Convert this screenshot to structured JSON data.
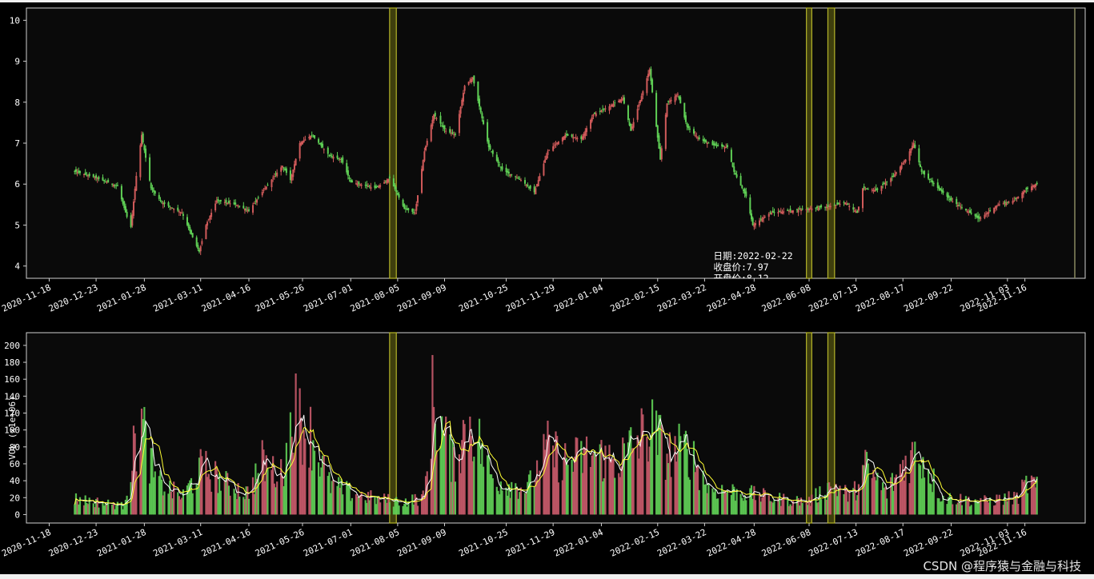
{
  "chart_data": [
    {
      "type": "candlestick",
      "ylim": [
        3.7,
        10.3
      ],
      "yticks": [
        "4",
        "5",
        "6",
        "7",
        "8",
        "9",
        "10"
      ],
      "x_tick_labels": [
        "2020-11-18",
        "2020-12-23",
        "2021-01-28",
        "2021-03-11",
        "2021-04-16",
        "2021-05-26",
        "2021-07-01",
        "2021-08-05",
        "2021-09-09",
        "2021-10-25",
        "2021-11-29",
        "2022-01-04",
        "2022-02-15",
        "2022-03-22",
        "2022-04-28",
        "2022-06-08",
        "2022-07-13",
        "2022-08-17",
        "2022-09-22",
        "2022-11-03",
        "2022-11-16"
      ],
      "close_anchors": [
        {
          "date": "2020-12-08",
          "close": 6.3
        },
        {
          "date": "2020-12-23",
          "close": 6.15
        },
        {
          "date": "2021-01-08",
          "close": 5.95
        },
        {
          "date": "2021-01-15",
          "close": 5.2
        },
        {
          "date": "2021-01-18",
          "close": 4.95
        },
        {
          "date": "2021-01-22",
          "close": 6.2
        },
        {
          "date": "2021-01-26",
          "close": 7.2
        },
        {
          "date": "2021-02-02",
          "close": 5.9
        },
        {
          "date": "2021-02-10",
          "close": 5.55
        },
        {
          "date": "2021-02-25",
          "close": 5.3
        },
        {
          "date": "2021-03-05",
          "close": 4.7
        },
        {
          "date": "2021-03-10",
          "close": 4.35
        },
        {
          "date": "2021-03-15",
          "close": 5.0
        },
        {
          "date": "2021-03-23",
          "close": 5.6
        },
        {
          "date": "2021-04-06",
          "close": 5.5
        },
        {
          "date": "2021-04-16",
          "close": 5.35
        },
        {
          "date": "2021-04-28",
          "close": 5.9
        },
        {
          "date": "2021-05-11",
          "close": 6.45
        },
        {
          "date": "2021-05-17",
          "close": 6.1
        },
        {
          "date": "2021-05-24",
          "close": 7.0
        },
        {
          "date": "2021-06-02",
          "close": 7.2
        },
        {
          "date": "2021-06-15",
          "close": 6.7
        },
        {
          "date": "2021-06-24",
          "close": 6.6
        },
        {
          "date": "2021-07-01",
          "close": 6.05
        },
        {
          "date": "2021-07-20",
          "close": 5.9
        },
        {
          "date": "2021-07-30",
          "close": 6.15
        },
        {
          "date": "2021-08-10",
          "close": 5.4
        },
        {
          "date": "2021-08-18",
          "close": 5.3
        },
        {
          "date": "2021-08-25",
          "close": 6.8
        },
        {
          "date": "2021-09-01",
          "close": 7.7
        },
        {
          "date": "2021-09-10",
          "close": 7.3
        },
        {
          "date": "2021-09-17",
          "close": 7.2
        },
        {
          "date": "2021-09-24",
          "close": 8.4
        },
        {
          "date": "2021-09-30",
          "close": 8.6
        },
        {
          "date": "2021-10-12",
          "close": 6.9
        },
        {
          "date": "2021-10-22",
          "close": 6.35
        },
        {
          "date": "2021-11-05",
          "close": 6.1
        },
        {
          "date": "2021-11-15",
          "close": 5.8
        },
        {
          "date": "2021-11-25",
          "close": 6.8
        },
        {
          "date": "2021-12-08",
          "close": 7.2
        },
        {
          "date": "2021-12-20",
          "close": 7.1
        },
        {
          "date": "2021-12-29",
          "close": 7.7
        },
        {
          "date": "2022-01-10",
          "close": 7.9
        },
        {
          "date": "2022-01-20",
          "close": 8.1
        },
        {
          "date": "2022-01-26",
          "close": 7.3
        },
        {
          "date": "2022-02-09",
          "close": 8.8
        },
        {
          "date": "2022-02-14",
          "close": 7.4
        },
        {
          "date": "2022-02-17",
          "close": 6.6
        },
        {
          "date": "2022-02-22",
          "close": 7.97
        },
        {
          "date": "2022-03-02",
          "close": 8.2
        },
        {
          "date": "2022-03-09",
          "close": 7.4
        },
        {
          "date": "2022-03-18",
          "close": 7.1
        },
        {
          "date": "2022-03-28",
          "close": 6.95
        },
        {
          "date": "2022-04-08",
          "close": 6.9
        },
        {
          "date": "2022-04-13",
          "close": 6.3
        },
        {
          "date": "2022-04-22",
          "close": 5.7
        },
        {
          "date": "2022-04-27",
          "close": 5.0
        },
        {
          "date": "2022-05-10",
          "close": 5.3
        },
        {
          "date": "2022-05-25",
          "close": 5.35
        },
        {
          "date": "2022-06-08",
          "close": 5.4
        },
        {
          "date": "2022-06-22",
          "close": 5.45
        },
        {
          "date": "2022-07-05",
          "close": 5.55
        },
        {
          "date": "2022-07-14",
          "close": 5.3
        },
        {
          "date": "2022-07-18",
          "close": 5.9
        },
        {
          "date": "2022-07-28",
          "close": 5.85
        },
        {
          "date": "2022-08-10",
          "close": 6.2
        },
        {
          "date": "2022-08-19",
          "close": 6.6
        },
        {
          "date": "2022-08-25",
          "close": 7.0
        },
        {
          "date": "2022-08-31",
          "close": 6.3
        },
        {
          "date": "2022-09-09",
          "close": 6.0
        },
        {
          "date": "2022-09-22",
          "close": 5.6
        },
        {
          "date": "2022-10-13",
          "close": 5.15
        },
        {
          "date": "2022-10-27",
          "close": 5.5
        },
        {
          "date": "2022-11-08",
          "close": 5.6
        },
        {
          "date": "2022-11-16",
          "close": 5.85
        },
        {
          "date": "2022-11-24",
          "close": 6.0
        }
      ],
      "colors": {
        "up": "#d05a5a",
        "down": "#5fcf55",
        "background": "#000000",
        "highlight": "#8a8a20"
      },
      "highlight_periods": [
        {
          "start": "2021-07-30",
          "end": "2021-08-04"
        },
        {
          "start": "2022-06-06",
          "end": "2022-06-10"
        },
        {
          "start": "2022-06-22",
          "end": "2022-06-27"
        }
      ],
      "annotation": {
        "date_label": "日期:2022-02-22",
        "close_label": "收盘价:7.97",
        "open_label": "开盘价:8.12"
      }
    },
    {
      "type": "bar",
      "ylabel": "VOL (x1e+06)",
      "ylim": [
        -10,
        215
      ],
      "yticks": [
        "0",
        "20",
        "40",
        "60",
        "80",
        "100",
        "120",
        "140",
        "160",
        "180",
        "200"
      ],
      "x_tick_labels": [
        "2020-11-18",
        "2020-12-23",
        "2021-01-28",
        "2021-03-11",
        "2021-04-16",
        "2021-05-26",
        "2021-07-01",
        "2021-08-05",
        "2021-09-09",
        "2021-10-25",
        "2021-11-29",
        "2022-01-04",
        "2022-02-15",
        "2022-03-22",
        "2022-04-28",
        "2022-06-08",
        "2022-07-13",
        "2022-08-17",
        "2022-09-22",
        "2022-11-03",
        "2022-11-16"
      ],
      "volume_anchors": [
        {
          "date": "2020-12-08",
          "vol": 18
        },
        {
          "date": "2021-01-12",
          "vol": 10
        },
        {
          "date": "2021-01-25",
          "vol": 110
        },
        {
          "date": "2021-02-05",
          "vol": 40
        },
        {
          "date": "2021-02-25",
          "vol": 20
        },
        {
          "date": "2021-03-12",
          "vol": 55
        },
        {
          "date": "2021-03-30",
          "vol": 35
        },
        {
          "date": "2021-04-15",
          "vol": 25
        },
        {
          "date": "2021-04-26",
          "vol": 60
        },
        {
          "date": "2021-05-10",
          "vol": 45
        },
        {
          "date": "2021-05-20",
          "vol": 120
        },
        {
          "date": "2021-06-02",
          "vol": 90
        },
        {
          "date": "2021-06-15",
          "vol": 35
        },
        {
          "date": "2021-07-01",
          "vol": 25
        },
        {
          "date": "2021-07-20",
          "vol": 18
        },
        {
          "date": "2021-08-10",
          "vol": 15
        },
        {
          "date": "2021-08-25",
          "vol": 20
        },
        {
          "date": "2021-08-31",
          "vol": 130
        },
        {
          "date": "2021-09-15",
          "vol": 60
        },
        {
          "date": "2021-09-28",
          "vol": 110
        },
        {
          "date": "2021-10-15",
          "vol": 40
        },
        {
          "date": "2021-11-10",
          "vol": 30
        },
        {
          "date": "2021-11-25",
          "vol": 75
        },
        {
          "date": "2021-12-10",
          "vol": 60
        },
        {
          "date": "2021-12-28",
          "vol": 70
        },
        {
          "date": "2022-01-15",
          "vol": 60
        },
        {
          "date": "2022-02-10",
          "vol": 100
        },
        {
          "date": "2022-02-22",
          "vol": 70
        },
        {
          "date": "2022-03-10",
          "vol": 75
        },
        {
          "date": "2022-03-25",
          "vol": 30
        },
        {
          "date": "2022-04-20",
          "vol": 25
        },
        {
          "date": "2022-05-15",
          "vol": 18
        },
        {
          "date": "2022-06-08",
          "vol": 15
        },
        {
          "date": "2022-06-25",
          "vol": 35
        },
        {
          "date": "2022-07-10",
          "vol": 20
        },
        {
          "date": "2022-07-20",
          "vol": 55
        },
        {
          "date": "2022-08-05",
          "vol": 25
        },
        {
          "date": "2022-08-20",
          "vol": 65
        },
        {
          "date": "2022-08-30",
          "vol": 70
        },
        {
          "date": "2022-09-15",
          "vol": 20
        },
        {
          "date": "2022-10-15",
          "vol": 15
        },
        {
          "date": "2022-11-10",
          "vol": 20
        },
        {
          "date": "2022-11-20",
          "vol": 40
        },
        {
          "date": "2022-11-24",
          "vol": 30
        }
      ],
      "colors": {
        "up": "#c85a6a",
        "down": "#5fcf55",
        "ma_short": "#ffffff",
        "ma_long": "#ffff33"
      }
    }
  ],
  "watermark": "CSDN @程序猿与金融与科技"
}
